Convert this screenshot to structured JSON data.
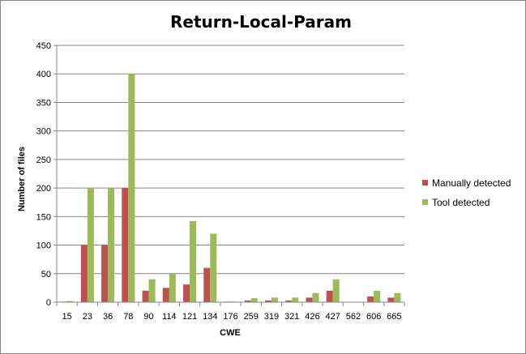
{
  "chart_data": {
    "type": "bar",
    "title": "Return-Local-Param",
    "xlabel": "CWE",
    "ylabel": "Number of files",
    "ylim": [
      0,
      450
    ],
    "yticks": [
      0,
      50,
      100,
      150,
      200,
      250,
      300,
      350,
      400,
      450
    ],
    "grid": true,
    "legend_position": "right",
    "categories": [
      "15",
      "23",
      "36",
      "78",
      "90",
      "114",
      "121",
      "134",
      "176",
      "259",
      "319",
      "321",
      "426",
      "427",
      "562",
      "606",
      "665"
    ],
    "series": [
      {
        "name": "Manually detected",
        "color": "#C0504D",
        "values": [
          1,
          100,
          100,
          200,
          20,
          25,
          31,
          60,
          1,
          3,
          3,
          3,
          8,
          20,
          0,
          10,
          8
        ]
      },
      {
        "name": "Tool detected",
        "color": "#9BBB59",
        "values": [
          2,
          200,
          200,
          400,
          40,
          50,
          142,
          120,
          1,
          7,
          8,
          8,
          16,
          40,
          0,
          20,
          16
        ]
      }
    ]
  }
}
